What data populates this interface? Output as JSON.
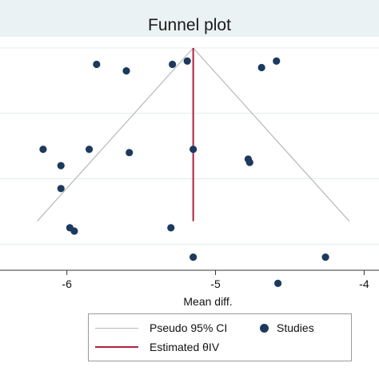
{
  "chart_data": {
    "type": "scatter",
    "title": "Funnel plot",
    "xlabel": "Mean diff.",
    "ylabel": "",
    "xlim": [
      -6.45,
      -3.9
    ],
    "ylim": [
      0.68,
      0.0
    ],
    "x_ticks": [
      -6,
      -5,
      -4
    ],
    "x_tick_labels": [
      "-6",
      "-5",
      "-4"
    ],
    "y_gridlines": [
      0.0,
      0.2,
      0.4,
      0.6
    ],
    "grid": true,
    "legend_position": "bottom",
    "estimate": -5.15,
    "funnel": {
      "apex": [
        -5.15,
        0.0
      ],
      "base_y": 0.53,
      "base_left": -6.2,
      "base_right": -4.1
    },
    "studies": [
      {
        "x": -5.8,
        "y": 0.05
      },
      {
        "x": -5.6,
        "y": 0.07
      },
      {
        "x": -5.29,
        "y": 0.05
      },
      {
        "x": -5.19,
        "y": 0.04
      },
      {
        "x": -4.69,
        "y": 0.06
      },
      {
        "x": -4.59,
        "y": 0.04
      },
      {
        "x": -6.16,
        "y": 0.31
      },
      {
        "x": -5.85,
        "y": 0.31
      },
      {
        "x": -5.58,
        "y": 0.32
      },
      {
        "x": -5.15,
        "y": 0.31
      },
      {
        "x": -6.04,
        "y": 0.36
      },
      {
        "x": -4.78,
        "y": 0.34
      },
      {
        "x": -4.77,
        "y": 0.35
      },
      {
        "x": -6.04,
        "y": 0.43
      },
      {
        "x": -5.98,
        "y": 0.55
      },
      {
        "x": -5.95,
        "y": 0.56
      },
      {
        "x": -5.3,
        "y": 0.55
      },
      {
        "x": -5.15,
        "y": 0.64
      },
      {
        "x": -4.26,
        "y": 0.64
      },
      {
        "x": -4.58,
        "y": 0.72
      }
    ],
    "legend": [
      {
        "label": "Pseudo 95% CI",
        "kind": "line",
        "color": "#b8b8b8"
      },
      {
        "label": "Studies",
        "kind": "marker",
        "color": "#1c3a5e"
      },
      {
        "label": "Estimated θIV",
        "kind": "line",
        "color": "#b0203f"
      }
    ]
  },
  "colors": {
    "title_band": "#eaf2f3",
    "grid": "#e2eced",
    "axis": "#333333",
    "ci": "#b8b8b8",
    "estimate": "#b0203f",
    "marker": "#1c3a5e"
  }
}
